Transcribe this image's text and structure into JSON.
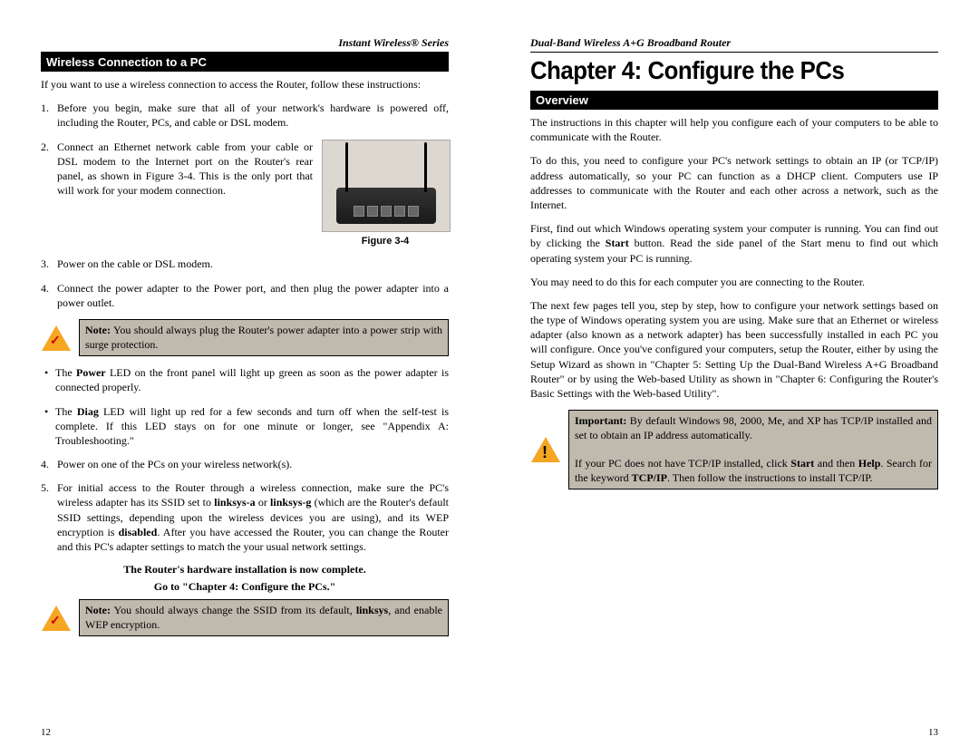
{
  "left": {
    "header": "Instant Wireless® Series",
    "section": "Wireless Connection to a PC",
    "intro": "If you want to use a wireless connection to access the Router, follow these instructions:",
    "steps": {
      "s1": "Before you begin, make sure that all of your network's hardware is powered off, including the Router, PCs, and cable or DSL modem.",
      "s2": "Connect an Ethernet network cable from your cable or DSL modem to the Internet port on the Router's rear panel, as shown in Figure 3-4. This is the only port that will work for your modem connection.",
      "s3": "Power on the cable or DSL modem.",
      "s4a": "Connect the power adapter to the Power port, and then plug the power adapter into a power outlet.",
      "s4b": "Power on one of the PCs on your wireless network(s).",
      "s5_pre": "For initial access to the Router through a wireless connection, make sure the PC's wireless adapter has its SSID set to ",
      "s5_b1": "linksys-a",
      "s5_mid1": " or ",
      "s5_b2": "linksys-g",
      "s5_mid2": " (which are the Router's default SSID settings, depending upon the wireless devices you are using), and its WEP encryption is ",
      "s5_b3": "disabled",
      "s5_post": ". After you have accessed the Router, you can change the Router and this PC's adapter settings to match the your usual network settings."
    },
    "figure_caption": "Figure 3-4",
    "note1_lead": "Note:",
    "note1": " You should always plug the Router's power adapter into a power strip with surge protection.",
    "bullet1_pre": "The ",
    "bullet1_b": "Power",
    "bullet1_post": " LED on the front panel will light up green as soon as the power adapter is connected properly.",
    "bullet2_pre": "The ",
    "bullet2_b": "Diag",
    "bullet2_post": " LED will light up red for a few seconds and turn off when the self-test is complete. If this LED stays on for one minute or longer, see \"Appendix A: Troubleshooting.\"",
    "complete1": "The Router's hardware installation is now complete.",
    "complete2_pre": "G",
    "complete2": "o to \"Chapter 4: Configure the PCs.\"",
    "note2_lead": "Note:",
    "note2_pre": " You should always change the SSID from its default, ",
    "note2_b": "linksys",
    "note2_post": ", and enable WEP encryption.",
    "pagenum": "12"
  },
  "right": {
    "header": "Dual-Band Wireless A+G Broadband Router",
    "chapter": "Chapter 4: Configure the PCs",
    "section": "Overview",
    "p1": "The instructions in this chapter will help you configure each of your computers to be able to communicate with the Router.",
    "p2": "To do this, you need to configure your PC's network settings to obtain an IP (or TCP/IP) address automatically, so your PC can function as a DHCP client. Computers use IP addresses to communicate with the Router and each other across a network, such as the Internet.",
    "p3_pre": "First, find out which Windows operating system your computer is running. You can find out by clicking the ",
    "p3_b": "Start",
    "p3_post": " button. Read the side panel of the Start menu to find out which operating system your PC is running.",
    "p4": "You may need to do this for each computer you are connecting to the Router.",
    "p5": "The next few pages tell you, step by step, how to configure your network settings based on the type of Windows operating system you are using. Make sure that an Ethernet or wireless adapter (also known as a network adapter) has been successfully installed in each PC you will configure. Once you've configured your computers, setup the Router, either by using the Setup Wizard as shown in \"Chapter 5: Setting Up the Dual-Band Wireless A+G Broadband Router\" or by using the Web-based Utility as shown in \"Chapter 6: Configuring the Router's Basic Settings with the Web-based Utility\".",
    "imp_lead": "Important:",
    "imp_l1": " By default Windows 98, 2000, Me, and XP has TCP/IP installed and set to obtain an IP address automatically.",
    "imp_l2_pre": "If your PC does not have TCP/IP installed, click ",
    "imp_b1": "Start",
    "imp_l2_mid": " and then ",
    "imp_b2": "Help",
    "imp_l2_mid2": ". Search for the keyword ",
    "imp_b3": "TCP/IP",
    "imp_l2_post": ". Then follow the instructions to install TCP/IP.",
    "pagenum": "13"
  }
}
